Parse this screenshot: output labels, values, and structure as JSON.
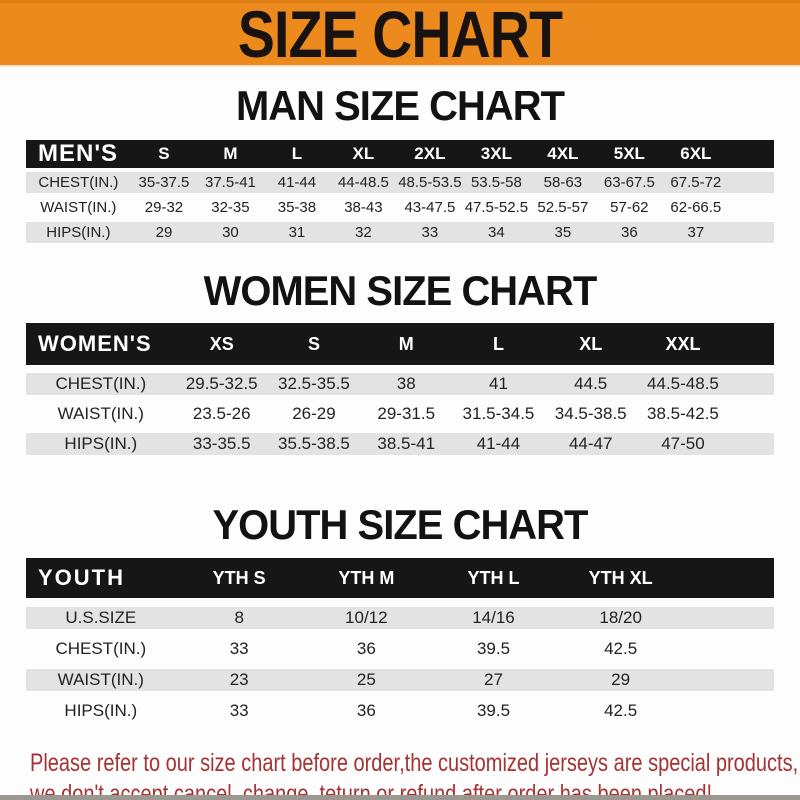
{
  "banner": {
    "title": "SIZE CHART"
  },
  "sections": [
    {
      "heading": "MAN SIZE CHART",
      "header_label": "MEN'S",
      "columns": [
        "S",
        "M",
        "L",
        "XL",
        "2XL",
        "3XL",
        "4XL",
        "5XL",
        "6XL"
      ],
      "rows": [
        {
          "label": "CHEST(IN.)",
          "values": [
            "35-37.5",
            "37.5-41",
            "41-44",
            "44-48.5",
            "48.5-53.5",
            "53.5-58",
            "58-63",
            "63-67.5",
            "67.5-72"
          ]
        },
        {
          "label": "WAIST(IN.)",
          "values": [
            "29-32",
            "32-35",
            "35-38",
            "38-43",
            "43-47.5",
            "47.5-52.5",
            "52.5-57",
            "57-62",
            "62-66.5"
          ]
        },
        {
          "label": "HIPS(IN.)",
          "values": [
            "29",
            "30",
            "31",
            "32",
            "33",
            "34",
            "35",
            "36",
            "37"
          ]
        }
      ]
    },
    {
      "heading": "WOMEN SIZE CHART",
      "header_label": "WOMEN'S",
      "columns": [
        "XS",
        "S",
        "M",
        "L",
        "XL",
        "XXL"
      ],
      "rows": [
        {
          "label": "CHEST(IN.)",
          "values": [
            "29.5-32.5",
            "32.5-35.5",
            "38",
            "41",
            "44.5",
            "44.5-48.5"
          ]
        },
        {
          "label": "WAIST(IN.)",
          "values": [
            "23.5-26",
            "26-29",
            "29-31.5",
            "31.5-34.5",
            "34.5-38.5",
            "38.5-42.5"
          ]
        },
        {
          "label": "HIPS(IN.)",
          "values": [
            "33-35.5",
            "35.5-38.5",
            "38.5-41",
            "41-44",
            "44-47",
            "47-50"
          ]
        }
      ]
    },
    {
      "heading": "YOUTH SIZE CHART",
      "header_label": "YOUTH",
      "columns": [
        "YTH S",
        "YTH M",
        "YTH L",
        "YTH XL"
      ],
      "rows": [
        {
          "label": "U.S.SIZE",
          "values": [
            "8",
            "10/12",
            "14/16",
            "18/20"
          ]
        },
        {
          "label": "CHEST(IN.)",
          "values": [
            "33",
            "36",
            "39.5",
            "42.5"
          ]
        },
        {
          "label": "WAIST(IN.)",
          "values": [
            "23",
            "25",
            "27",
            "29"
          ]
        },
        {
          "label": "HIPS(IN.)",
          "values": [
            "33",
            "36",
            "39.5",
            "42.5"
          ]
        }
      ]
    }
  ],
  "footer": {
    "line1": "Please refer to our size chart before order,the customized jerseys are special products,",
    "line2": "we don't accept cancel, change, teturn or refund after order has been placed!"
  },
  "colors": {
    "banner_orange": "#EC8A1E",
    "header_black": "#161616",
    "row_gray": "#E3E3E3",
    "footer_red": "#A63233"
  }
}
